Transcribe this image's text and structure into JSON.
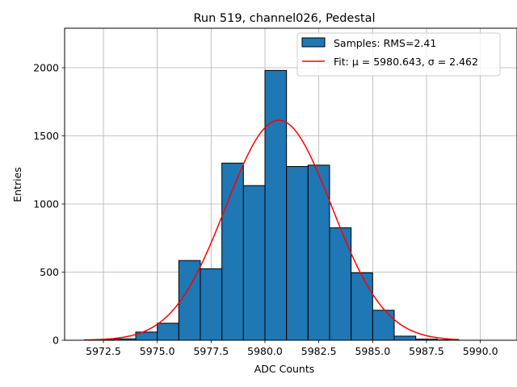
{
  "chart_data": {
    "type": "bar",
    "title": "Run 519, channel026, Pedestal",
    "xlabel": "ADC Counts",
    "ylabel": "Entries",
    "xlim": [
      5970.7,
      5991.7
    ],
    "ylim": [
      0,
      2290
    ],
    "grid": true,
    "legend_position": "top-right",
    "x_ticks": [
      5972.5,
      5975.0,
      5977.5,
      5980.0,
      5982.5,
      5985.0,
      5987.5,
      5990.0
    ],
    "x_tick_labels": [
      "5972.5",
      "5975.0",
      "5977.5",
      "5980.0",
      "5982.5",
      "5985.0",
      "5987.5",
      "5990.0"
    ],
    "y_ticks": [
      0,
      500,
      1000,
      1500,
      2000
    ],
    "y_tick_labels": [
      "0",
      "500",
      "1000",
      "1500",
      "2000"
    ],
    "bins": [
      {
        "x0": 5972.0,
        "x1": 5973.0,
        "value": 3
      },
      {
        "x0": 5973.0,
        "x1": 5974.0,
        "value": 10
      },
      {
        "x0": 5974.0,
        "x1": 5975.0,
        "value": 60
      },
      {
        "x0": 5975.0,
        "x1": 5976.0,
        "value": 125
      },
      {
        "x0": 5976.0,
        "x1": 5977.0,
        "value": 585
      },
      {
        "x0": 5977.0,
        "x1": 5978.0,
        "value": 525
      },
      {
        "x0": 5978.0,
        "x1": 5979.0,
        "value": 1300
      },
      {
        "x0": 5979.0,
        "x1": 5980.0,
        "value": 1135
      },
      {
        "x0": 5980.0,
        "x1": 5981.0,
        "value": 1980
      },
      {
        "x0": 5981.0,
        "x1": 5982.0,
        "value": 1275
      },
      {
        "x0": 5982.0,
        "x1": 5983.0,
        "value": 1285
      },
      {
        "x0": 5983.0,
        "x1": 5984.0,
        "value": 825
      },
      {
        "x0": 5984.0,
        "x1": 5985.0,
        "value": 495
      },
      {
        "x0": 5985.0,
        "x1": 5986.0,
        "value": 220
      },
      {
        "x0": 5986.0,
        "x1": 5987.0,
        "value": 30
      },
      {
        "x0": 5987.0,
        "x1": 5988.0,
        "value": 8
      },
      {
        "x0": 5988.0,
        "x1": 5989.0,
        "value": 3
      }
    ],
    "fit": {
      "mu": 5980.643,
      "sigma": 2.462,
      "peak": 1615,
      "x_range": [
        5971.6,
        5989.0
      ]
    },
    "series": [
      {
        "name": "Samples: RMS=2.41",
        "kind": "histogram",
        "color": "#1f77b4",
        "edge_color": "#000000"
      },
      {
        "name": "Fit: μ = 5980.643, σ = 2.462",
        "kind": "line",
        "color": "#ff0000"
      }
    ]
  }
}
